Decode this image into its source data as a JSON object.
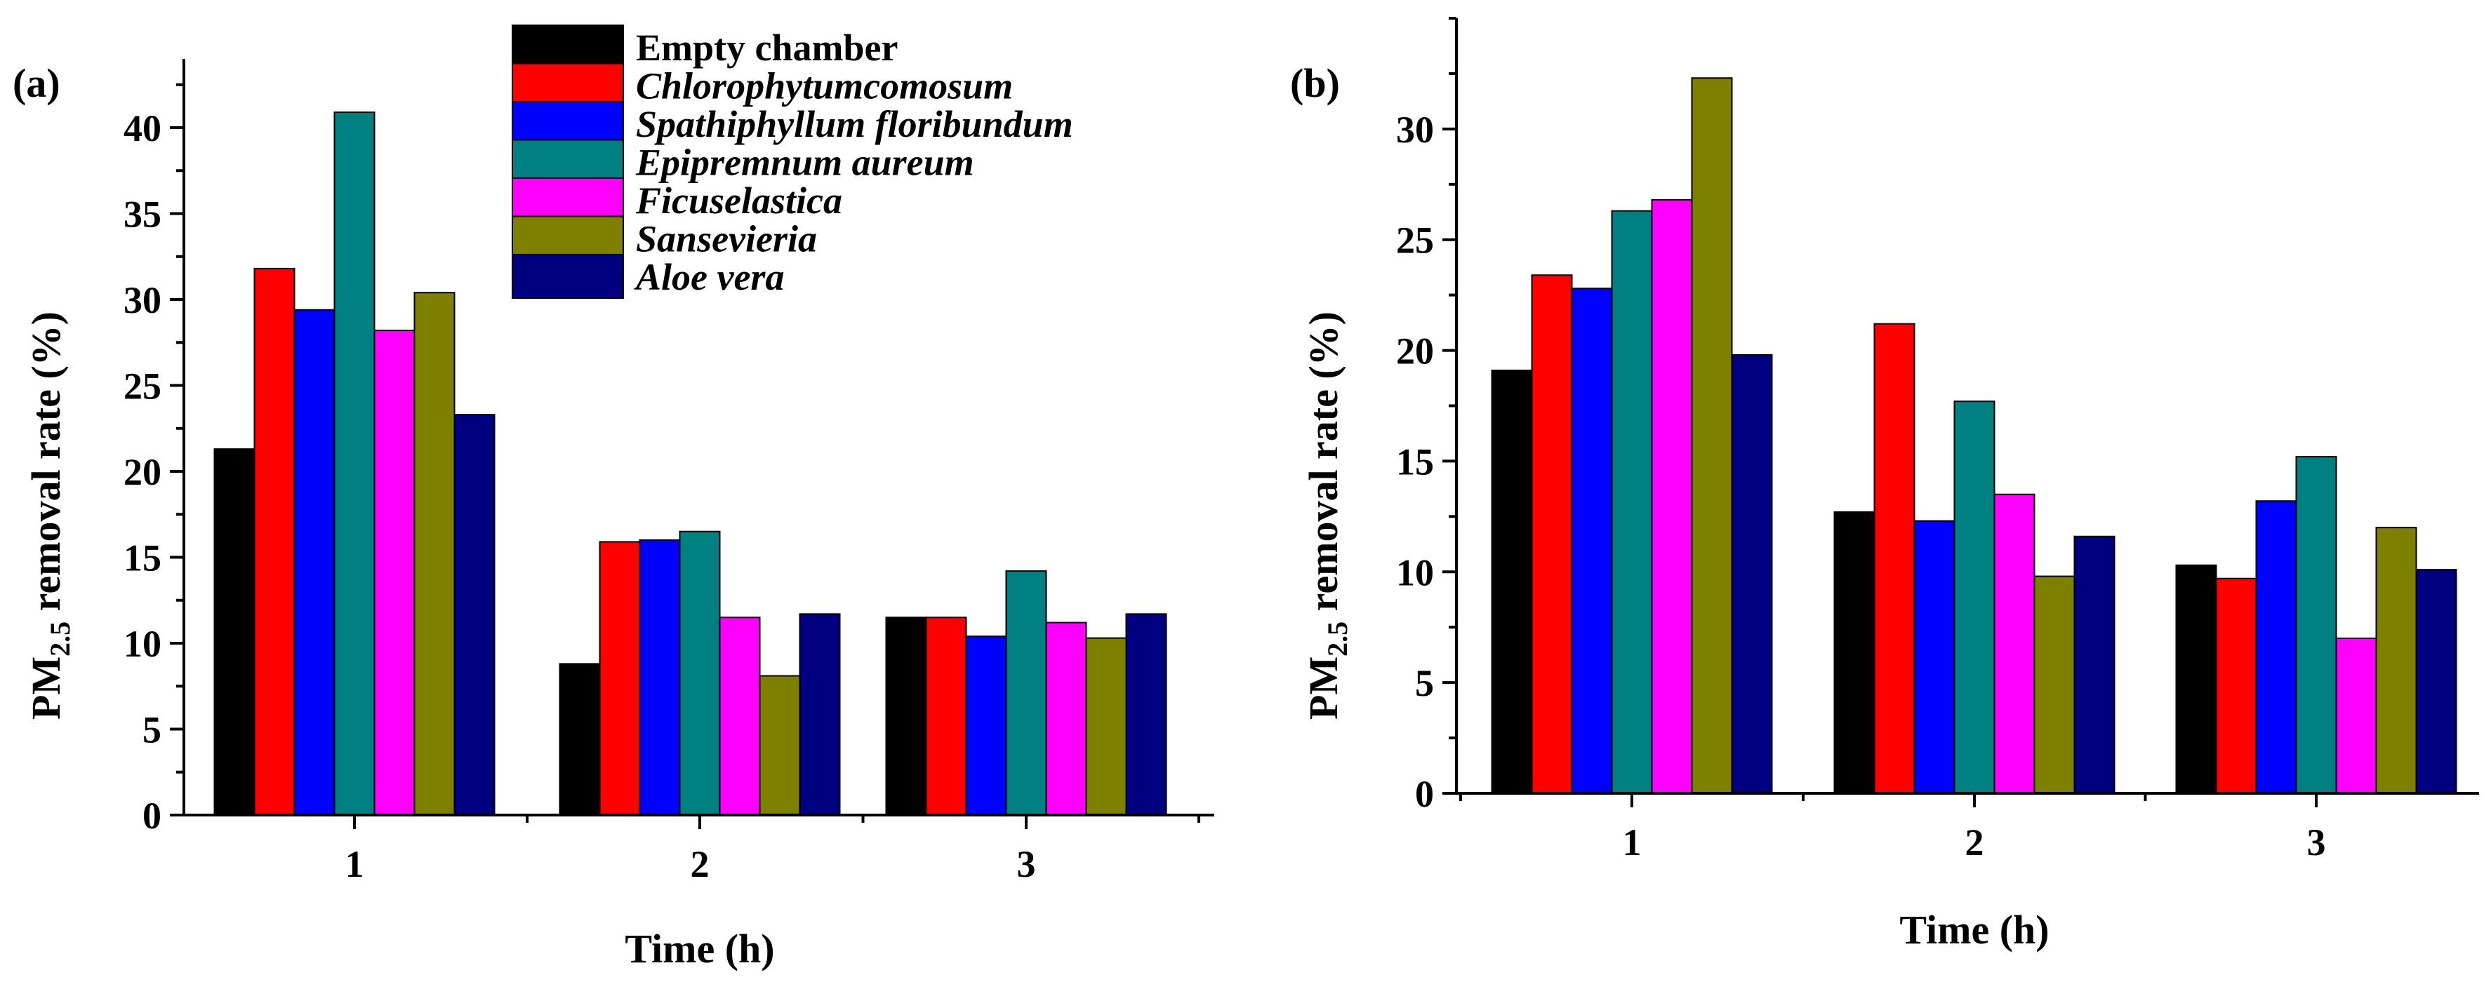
{
  "chart_data": [
    {
      "type": "bar",
      "panel_label": "(a)",
      "title": "",
      "categories": [
        "1",
        "2",
        "3"
      ],
      "xlabel": "Time (h)",
      "ylabel_prefix": "PM",
      "ylabel_subscript": "2.5",
      "ylabel_suffix": " removal rate (%)",
      "ylim": [
        0,
        44
      ],
      "yticks": [
        0,
        5,
        10,
        15,
        20,
        25,
        30,
        35,
        40
      ],
      "grid": false,
      "legend_position": "top-center",
      "series": [
        {
          "name": "Empty chamber",
          "color": "#000000",
          "italic": false,
          "values": [
            21.3,
            8.8,
            11.5
          ]
        },
        {
          "name": "Chlorophytumcomosum",
          "color": "#ff0000",
          "italic": true,
          "values": [
            31.8,
            15.9,
            11.5
          ]
        },
        {
          "name": "Spathiphyllum floribundum",
          "color": "#0000ff",
          "italic": true,
          "values": [
            29.4,
            16.0,
            10.4
          ]
        },
        {
          "name": "Epipremnum aureum",
          "color": "#008080",
          "italic": true,
          "values": [
            40.9,
            16.5,
            14.2
          ]
        },
        {
          "name": "Ficuselastica",
          "color": "#ff00ff",
          "italic": true,
          "values": [
            28.2,
            11.5,
            11.2
          ]
        },
        {
          "name": "Sansevieria",
          "color": "#808000",
          "italic": true,
          "values": [
            30.4,
            8.1,
            10.3
          ]
        },
        {
          "name": "Aloe vera",
          "color": "#000080",
          "italic": true,
          "values": [
            23.3,
            11.7,
            11.7
          ]
        }
      ]
    },
    {
      "type": "bar",
      "panel_label": "(b)",
      "title": "",
      "categories": [
        "1",
        "2",
        "3"
      ],
      "xlabel": "Time (h)",
      "ylabel_prefix": "PM",
      "ylabel_subscript": "2.5",
      "ylabel_suffix": " removal rate (%)",
      "ylim": [
        0,
        35
      ],
      "yticks": [
        0,
        5,
        10,
        15,
        20,
        25,
        30
      ],
      "grid": false,
      "series": [
        {
          "name": "Empty chamber",
          "color": "#000000",
          "values": [
            19.1,
            12.7,
            10.3
          ]
        },
        {
          "name": "Chlorophytumcomosum",
          "color": "#ff0000",
          "values": [
            23.4,
            21.2,
            9.7
          ]
        },
        {
          "name": "Spathiphyllum floribundum",
          "color": "#0000ff",
          "values": [
            22.8,
            12.3,
            13.2
          ]
        },
        {
          "name": "Epipremnum aureum",
          "color": "#008080",
          "values": [
            26.3,
            17.7,
            15.2
          ]
        },
        {
          "name": "Ficuselastica",
          "color": "#ff00ff",
          "values": [
            26.8,
            13.5,
            7.0
          ]
        },
        {
          "name": "Sansevieria",
          "color": "#808000",
          "values": [
            32.3,
            9.8,
            12.0
          ]
        },
        {
          "name": "Aloe vera",
          "color": "#000080",
          "values": [
            19.8,
            11.6,
            10.1
          ]
        }
      ]
    }
  ]
}
